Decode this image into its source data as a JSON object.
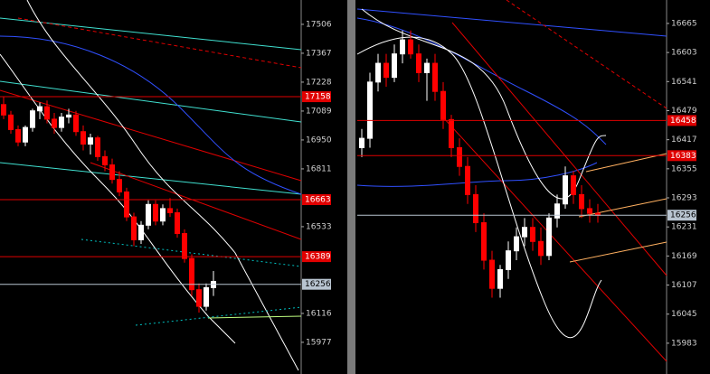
{
  "chart_data": [
    {
      "type": "candlestick",
      "ylim": [
        15842,
        17623
      ],
      "yticks": [
        15977,
        16116,
        16533,
        16811,
        16950,
        17089,
        17228,
        17367,
        17506
      ],
      "up_color": "#ffffff",
      "down_color": "#ff0000",
      "price_tags": [
        {
          "value": 17158,
          "color": "#e00000"
        },
        {
          "value": 16663,
          "color": "#e00000"
        },
        {
          "value": 16389,
          "color": "#e00000"
        },
        {
          "value": 16256,
          "color": "#b8c4d0"
        }
      ],
      "candles": [
        [
          17120,
          17160,
          17050,
          17070
        ],
        [
          17070,
          17090,
          16980,
          17000
        ],
        [
          17000,
          17020,
          16920,
          16940
        ],
        [
          16940,
          17020,
          16920,
          17010
        ],
        [
          17010,
          17100,
          16990,
          17090
        ],
        [
          17090,
          17130,
          17050,
          17110
        ],
        [
          17110,
          17140,
          17030,
          17050
        ],
        [
          17050,
          17080,
          16980,
          17010
        ],
        [
          17010,
          17080,
          16990,
          17060
        ],
        [
          17060,
          17100,
          17030,
          17070
        ],
        [
          17070,
          17090,
          16970,
          16990
        ],
        [
          16990,
          17020,
          16900,
          16930
        ],
        [
          16930,
          16980,
          16880,
          16960
        ],
        [
          16960,
          16970,
          16850,
          16870
        ],
        [
          16870,
          16900,
          16800,
          16830
        ],
        [
          16830,
          16860,
          16740,
          16760
        ],
        [
          16760,
          16800,
          16680,
          16700
        ],
        [
          16700,
          16720,
          16560,
          16580
        ],
        [
          16580,
          16600,
          16440,
          16470
        ],
        [
          16470,
          16560,
          16450,
          16540
        ],
        [
          16540,
          16660,
          16520,
          16640
        ],
        [
          16640,
          16660,
          16540,
          16560
        ],
        [
          16560,
          16640,
          16540,
          16620
        ],
        [
          16620,
          16670,
          16580,
          16600
        ],
        [
          16600,
          16620,
          16480,
          16500
        ],
        [
          16500,
          16520,
          16360,
          16380
        ],
        [
          16380,
          16400,
          16200,
          16230
        ],
        [
          16230,
          16260,
          16120,
          16150
        ],
        [
          16150,
          16260,
          16130,
          16240
        ],
        [
          16240,
          16320,
          16200,
          16270
        ]
      ]
    },
    {
      "type": "candlestick",
      "ylim": [
        15925,
        16715
      ],
      "yticks": [
        15983,
        16045,
        16107,
        16169,
        16231,
        16293,
        16355,
        16417,
        16479,
        16541,
        16603,
        16665
      ],
      "up_color": "#ffffff",
      "down_color": "#ff0000",
      "price_tags": [
        {
          "value": 16458,
          "color": "#e00000"
        },
        {
          "value": 16383,
          "color": "#e00000"
        },
        {
          "value": 16256,
          "color": "#b8c4d0"
        }
      ],
      "candles": [
        [
          16400,
          16440,
          16380,
          16420
        ],
        [
          16420,
          16560,
          16400,
          16540
        ],
        [
          16540,
          16600,
          16520,
          16580
        ],
        [
          16580,
          16600,
          16530,
          16550
        ],
        [
          16550,
          16620,
          16540,
          16600
        ],
        [
          16600,
          16650,
          16580,
          16630
        ],
        [
          16630,
          16650,
          16590,
          16600
        ],
        [
          16600,
          16620,
          16540,
          16560
        ],
        [
          16560,
          16590,
          16500,
          16580
        ],
        [
          16580,
          16600,
          16500,
          16520
        ],
        [
          16520,
          16540,
          16440,
          16460
        ],
        [
          16460,
          16470,
          16380,
          16400
        ],
        [
          16400,
          16420,
          16340,
          16360
        ],
        [
          16360,
          16380,
          16280,
          16300
        ],
        [
          16300,
          16320,
          16220,
          16240
        ],
        [
          16240,
          16260,
          16140,
          16160
        ],
        [
          16160,
          16180,
          16080,
          16100
        ],
        [
          16100,
          16150,
          16080,
          16140
        ],
        [
          16140,
          16200,
          16120,
          16180
        ],
        [
          16180,
          16230,
          16160,
          16210
        ],
        [
          16210,
          16250,
          16190,
          16230
        ],
        [
          16230,
          16250,
          16180,
          16200
        ],
        [
          16200,
          16230,
          16150,
          16170
        ],
        [
          16170,
          16260,
          16160,
          16250
        ],
        [
          16250,
          16300,
          16230,
          16280
        ],
        [
          16280,
          16360,
          16270,
          16340
        ],
        [
          16340,
          16350,
          16280,
          16300
        ],
        [
          16300,
          16320,
          16250,
          16270
        ],
        [
          16270,
          16290,
          16240,
          16260
        ],
        [
          16260,
          16280,
          16240,
          16256
        ]
      ]
    }
  ]
}
